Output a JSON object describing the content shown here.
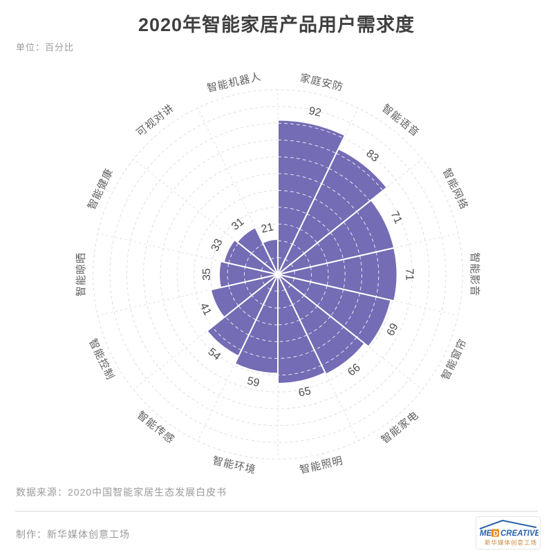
{
  "header": {
    "title": "2020年智能家居产品用户需求度",
    "unit_label": "单位：百分比"
  },
  "chart_data": {
    "type": "bar",
    "polar": true,
    "style": "nightingale-rose",
    "title": "2020年智能家居产品用户需求度",
    "unit": "百分比",
    "categories": [
      "家庭安防",
      "智能语音",
      "智能网络",
      "智能影音",
      "智能窗帘",
      "智能家电",
      "智能照明",
      "智能环境",
      "智能传感",
      "智能控制",
      "智能晾晒",
      "智能健康",
      "可视对讲",
      "智能机器人"
    ],
    "values": [
      92,
      83,
      71,
      71,
      69,
      66,
      65,
      59,
      54,
      41,
      35,
      33,
      31,
      21
    ],
    "rlim": [
      0,
      110
    ],
    "grid_step": 10,
    "grid_dashed": true,
    "start_angle_deg": 0,
    "direction": "clockwise",
    "bar_color": "#746CB4",
    "bar_border_color": "#ffffff",
    "grid_color": "#dddde4",
    "inner_grid_color": "rgba(255,255,255,0.85)"
  },
  "footer": {
    "source": "数据来源：2020中国智能家居生态发展白皮书",
    "credit": "制作：新华媒体创意工场",
    "logo": {
      "text_pre": "ME",
      "text_box": "D",
      "text_post": "CREATIVE",
      "subtext": "新华媒体创意工场",
      "blue": "#2b5fa8",
      "orange": "#f08c1e",
      "subtext_color": "#c98a3a"
    }
  }
}
